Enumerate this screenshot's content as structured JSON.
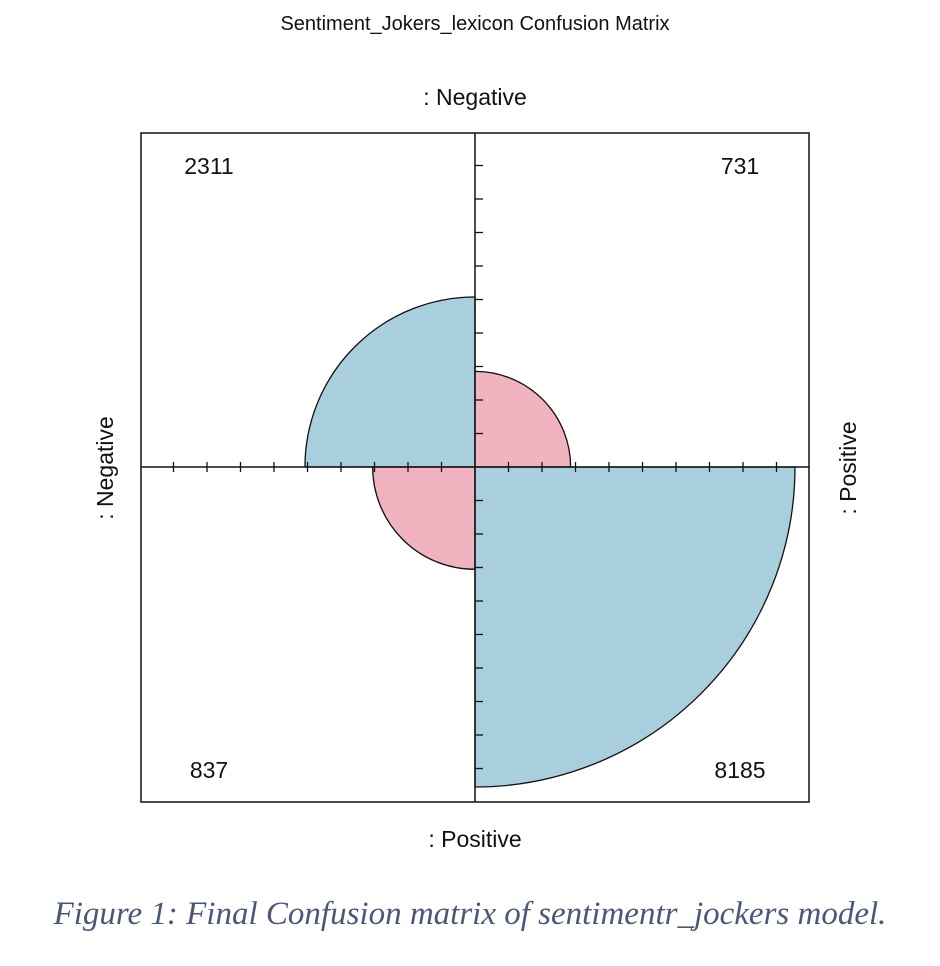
{
  "chart_data": {
    "type": "fourfold",
    "title": "Sentiment_Jokers_lexicon Confusion Matrix",
    "top_label": ": Negative",
    "bottom_label": ": Positive",
    "left_label": ": Negative",
    "right_label": ": Positive",
    "cells": [
      {
        "name": "top-left",
        "value": 2311,
        "color": "#a9cfdf",
        "label": "2311"
      },
      {
        "name": "top-right",
        "value": 731,
        "color": "#f2b3c1",
        "label": "731"
      },
      {
        "name": "bottom-left",
        "value": 837,
        "color": "#f2b3c1",
        "label": "837"
      },
      {
        "name": "bottom-right",
        "value": 8185,
        "color": "#a9cfdf",
        "label": "8185"
      }
    ],
    "grid": false,
    "legend": "none"
  },
  "caption": "Figure 1: Final Confusion matrix of sentimentr_jockers model."
}
